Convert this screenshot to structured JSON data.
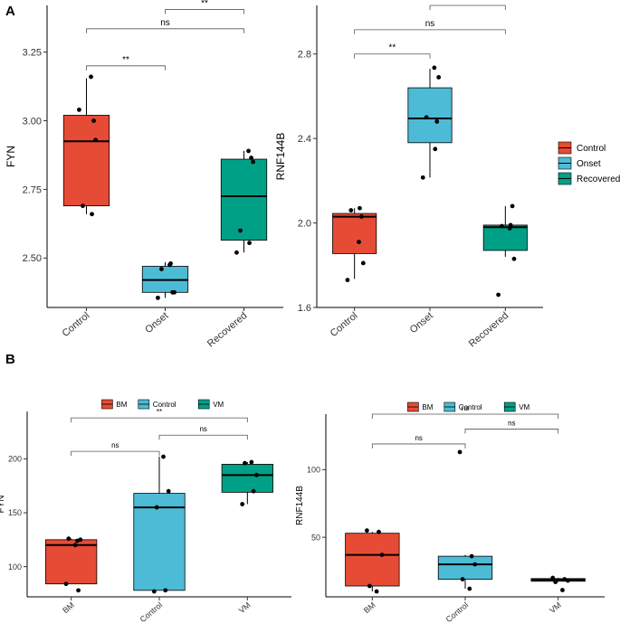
{
  "panel_labels": [
    "A",
    "B"
  ],
  "chart_data": [
    {
      "type": "boxplot",
      "panel": "A",
      "ylabel": "FYN",
      "categories": [
        "Control",
        "Onset",
        "Recovered"
      ],
      "colors": [
        "#E64B35",
        "#4DBBD5",
        "#00A087"
      ],
      "ylim": [
        2.32,
        3.42
      ],
      "yticks": [
        2.5,
        2.75,
        3.0,
        3.25
      ],
      "ytick_labels": [
        "2.50",
        "2.75",
        "3.00",
        "3.25"
      ],
      "boxes": [
        {
          "q1": 2.69,
          "median": 2.925,
          "q3": 3.02,
          "whisker_low": 2.66,
          "whisker_high": 3.155
        },
        {
          "q1": 2.375,
          "median": 2.42,
          "q3": 2.47,
          "whisker_low": 2.355,
          "whisker_high": 2.485
        },
        {
          "q1": 2.565,
          "median": 2.725,
          "q3": 2.86,
          "whisker_low": 2.52,
          "whisker_high": 2.89
        }
      ],
      "points": [
        [
          3.04,
          2.66,
          2.69,
          3.0,
          2.93,
          3.16
        ],
        [
          2.355,
          2.48,
          2.46,
          2.375,
          2.375,
          2.475
        ],
        [
          2.52,
          2.555,
          2.6,
          2.865,
          2.85,
          2.89
        ]
      ],
      "comparisons": [
        {
          "from": 0,
          "to": 1,
          "label": "**",
          "y": 3.2
        },
        {
          "from": 0,
          "to": 2,
          "label": "ns",
          "y": 3.335
        },
        {
          "from": 1,
          "to": 2,
          "label": "**",
          "y": 3.405
        }
      ]
    },
    {
      "type": "boxplot",
      "panel": "A",
      "ylabel": "RNF144B",
      "categories": [
        "Control",
        "Onset",
        "Recovered"
      ],
      "colors": [
        "#E64B35",
        "#4DBBD5",
        "#00A087"
      ],
      "ylim": [
        1.6,
        3.03
      ],
      "yticks": [
        1.6,
        2.0,
        2.4,
        2.8
      ],
      "ytick_labels": [
        "1.6",
        "2.0",
        "2.4",
        "2.8"
      ],
      "boxes": [
        {
          "q1": 1.855,
          "median": 2.03,
          "q3": 2.045,
          "whisker_low": 1.735,
          "whisker_high": 2.07
        },
        {
          "q1": 2.38,
          "median": 2.495,
          "q3": 2.64,
          "whisker_low": 2.215,
          "whisker_high": 2.73
        },
        {
          "q1": 1.87,
          "median": 1.98,
          "q3": 1.99,
          "whisker_low": 1.84,
          "whisker_high": 2.08
        }
      ],
      "points": [
        [
          1.73,
          2.07,
          2.06,
          2.03,
          1.81,
          1.91
        ],
        [
          2.215,
          2.35,
          2.5,
          2.48,
          2.69,
          2.735
        ],
        [
          1.66,
          1.99,
          1.985,
          2.08,
          1.83,
          1.975
        ]
      ],
      "comparisons": [
        {
          "from": 0,
          "to": 1,
          "label": "**",
          "y": 2.8
        },
        {
          "from": 0,
          "to": 2,
          "label": "ns",
          "y": 2.915
        },
        {
          "from": 1,
          "to": 2,
          "label": "**",
          "y": 3.03
        }
      ]
    },
    {
      "type": "boxplot",
      "panel": "B",
      "ylabel": "FYN",
      "categories": [
        "BM",
        "Control",
        "VM"
      ],
      "colors": [
        "#E64B35",
        "#4DBBD5",
        "#00A087"
      ],
      "ylim": [
        72,
        244
      ],
      "yticks": [
        100,
        150,
        200
      ],
      "ytick_labels": [
        "100",
        "150",
        "200"
      ],
      "boxes": [
        {
          "q1": 84,
          "median": 120,
          "q3": 125,
          "whisker_low": 84,
          "whisker_high": 126
        },
        {
          "q1": 78,
          "median": 155,
          "q3": 168,
          "whisker_low": 78,
          "whisker_high": 202
        },
        {
          "q1": 169,
          "median": 185,
          "q3": 195,
          "whisker_low": 158,
          "whisker_high": 197
        }
      ],
      "points": [
        [
          84,
          124,
          125,
          126,
          120,
          78
        ],
        [
          77,
          78,
          170,
          155,
          202
        ],
        [
          158,
          170,
          185,
          196,
          197
        ]
      ],
      "comparisons": [
        {
          "from": 0,
          "to": 1,
          "label": "ns",
          "y": 207
        },
        {
          "from": 1,
          "to": 2,
          "label": "ns",
          "y": 222
        },
        {
          "from": 0,
          "to": 2,
          "label": "**",
          "y": 238
        }
      ],
      "legend": {
        "title": "",
        "entries": [
          "BM",
          "Control",
          "VM"
        ],
        "position": "top"
      }
    },
    {
      "type": "boxplot",
      "panel": "B",
      "ylabel": "RNF144B",
      "categories": [
        "BM",
        "Control",
        "VM"
      ],
      "colors": [
        "#E64B35",
        "#4DBBD5",
        "#00A087"
      ],
      "ylim": [
        6,
        141
      ],
      "yticks": [
        50,
        100
      ],
      "ytick_labels": [
        "50",
        "100"
      ],
      "boxes": [
        {
          "q1": 14,
          "median": 37,
          "q3": 53,
          "whisker_low": 10,
          "whisker_high": 54
        },
        {
          "q1": 19,
          "median": 30,
          "q3": 36,
          "whisker_low": 12,
          "whisker_high": 37
        },
        {
          "q1": 17.5,
          "median": 18.5,
          "q3": 19.5,
          "whisker_low": 17,
          "whisker_high": 20
        }
      ],
      "points": [
        [
          55,
          54,
          37,
          14,
          10
        ],
        [
          113,
          36,
          30,
          19,
          12
        ],
        [
          20,
          19,
          18,
          17,
          11
        ]
      ],
      "comparisons": [
        {
          "from": 0,
          "to": 1,
          "label": "ns",
          "y": 119
        },
        {
          "from": 1,
          "to": 2,
          "label": "ns",
          "y": 130
        },
        {
          "from": 0,
          "to": 2,
          "label": "ns",
          "y": 141
        }
      ],
      "legend": {
        "title": "",
        "entries": [
          "BM",
          "Control",
          "VM"
        ],
        "position": "top"
      }
    }
  ],
  "legend_A": {
    "title": "",
    "entries": [
      "Control",
      "Onset",
      "Recovered"
    ],
    "colors": [
      "#E64B35",
      "#4DBBD5",
      "#00A087"
    ],
    "position": "right"
  }
}
